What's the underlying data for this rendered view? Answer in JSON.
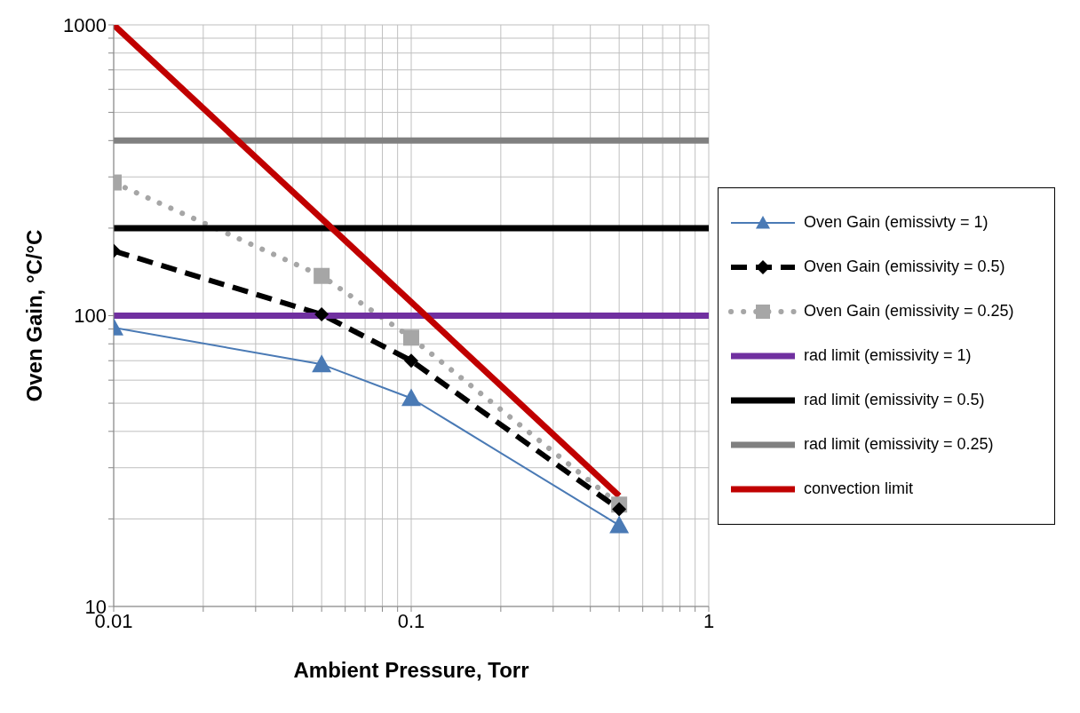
{
  "chart_data": {
    "type": "line",
    "xlabel": "Ambient Pressure, Torr",
    "ylabel": "Oven Gain, °C/°C",
    "log": "xy",
    "grid": true,
    "legend": "right",
    "xlim": [
      0.01,
      1
    ],
    "ylim": [
      10,
      1000
    ],
    "xticks": [
      0.01,
      {
        "value": 0.02,
        "label": null
      },
      {
        "value": 0.03,
        "label": null
      },
      {
        "value": 0.04,
        "label": null
      },
      {
        "value": 0.05,
        "label": null
      },
      {
        "value": 0.06,
        "label": null
      },
      {
        "value": 0.07,
        "label": null
      },
      {
        "value": 0.08,
        "label": null
      },
      {
        "value": 0.09,
        "label": null
      },
      0.1,
      {
        "value": 0.2,
        "label": null
      },
      {
        "value": 0.3,
        "label": null
      },
      {
        "value": 0.4,
        "label": null
      },
      {
        "value": 0.5,
        "label": null
      },
      {
        "value": 0.6,
        "label": null
      },
      {
        "value": 0.7,
        "label": null
      },
      {
        "value": 0.8,
        "label": null
      },
      {
        "value": 0.9,
        "label": null
      },
      1
    ],
    "yticks": [
      10,
      {
        "value": 20,
        "label": null
      },
      {
        "value": 30,
        "label": null
      },
      {
        "value": 40,
        "label": null
      },
      {
        "value": 50,
        "label": null
      },
      {
        "value": 60,
        "label": null
      },
      {
        "value": 70,
        "label": null
      },
      {
        "value": 80,
        "label": null
      },
      {
        "value": 90,
        "label": null
      },
      100,
      {
        "value": 200,
        "label": null
      },
      {
        "value": 300,
        "label": null
      },
      {
        "value": 400,
        "label": null
      },
      {
        "value": 500,
        "label": null
      },
      {
        "value": 600,
        "label": null
      },
      {
        "value": 700,
        "label": null
      },
      {
        "value": 800,
        "label": null
      },
      {
        "value": 900,
        "label": null
      },
      1000
    ],
    "series": [
      {
        "name": "Oven Gain (emissivty = 1)",
        "color": "#4a7ab5",
        "marker": "triangle",
        "line_style": "solid",
        "x": [
          0.01,
          0.05,
          0.1,
          0.5
        ],
        "values": [
          91,
          68,
          52,
          19
        ]
      },
      {
        "name": "Oven Gain (emissivity = 0.5)",
        "color": "#000000",
        "marker": "diamond",
        "line_style": "dashed",
        "x": [
          0.01,
          0.05,
          0.1,
          0.5
        ],
        "values": [
          167,
          101,
          70,
          21.6
        ]
      },
      {
        "name": "Oven Gain (emissivity = 0.25)",
        "color": "#a6a6a6",
        "marker": "square",
        "line_style": "dotted",
        "x": [
          0.01,
          0.05,
          0.1,
          0.5
        ],
        "values": [
          287,
          137,
          84,
          22.4
        ]
      },
      {
        "name": "rad limit (emissivity = 1)",
        "color": "#7030a0",
        "marker": "none",
        "line_style": "solid",
        "x": [
          0.01,
          1
        ],
        "values": [
          100,
          100
        ]
      },
      {
        "name": "rad limit (emissivity = 0.5)",
        "color": "#000000",
        "marker": "none",
        "line_style": "solid",
        "x": [
          0.01,
          1
        ],
        "values": [
          200,
          200
        ]
      },
      {
        "name": "rad limit (emissivity = 0.25)",
        "color": "#808080",
        "marker": "none",
        "line_style": "solid",
        "x": [
          0.01,
          1
        ],
        "values": [
          400,
          400
        ]
      },
      {
        "name": "convection limit",
        "color": "#c00000",
        "marker": "none",
        "line_style": "solid",
        "x": [
          0.01,
          0.5
        ],
        "values": [
          1000,
          24
        ]
      }
    ]
  }
}
